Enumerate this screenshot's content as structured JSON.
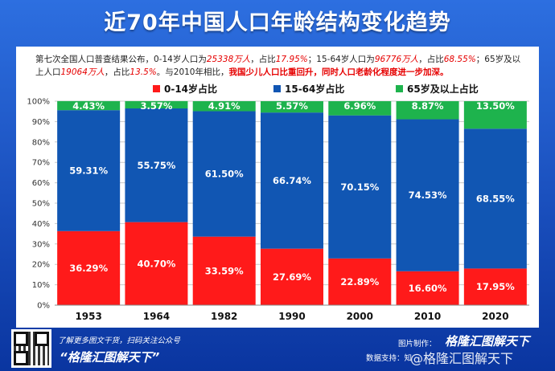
{
  "title": "近70年中国人口年龄结构变化趋势",
  "description": {
    "p1": "第七次全国人口普查结果公布，0-14岁人口为",
    "v1": "25338万人",
    "p2": "，占比",
    "v2": "17.95%",
    "p3": "；15-64岁人口为",
    "v3": "96776万人",
    "p4": "，占比",
    "v4": "68.55%",
    "p5": "；65岁及以上人口",
    "v5": "19064万人",
    "p6": "，占比",
    "v6": "13.5%",
    "p7": "。与2010年相比，",
    "v7": "我国少儿人口比重回升，同时人口老龄化程度进一步加深。"
  },
  "colors": {
    "young": "#ff1a1a",
    "working": "#1156b3",
    "elderly": "#1eb34d",
    "grid": "#c8c8c8"
  },
  "chart_data": {
    "type": "bar",
    "stacked": true,
    "categories": [
      "1953",
      "1964",
      "1982",
      "1990",
      "2000",
      "2010",
      "2020"
    ],
    "series": [
      {
        "name": "0-14岁占比",
        "values": [
          36.29,
          40.7,
          33.59,
          27.69,
          22.89,
          16.6,
          17.95
        ],
        "labels": [
          "36.29%",
          "40.70%",
          "33.59%",
          "27.69%",
          "22.89%",
          "16.60%",
          "17.95%"
        ]
      },
      {
        "name": "15-64岁占比",
        "values": [
          59.31,
          55.75,
          61.5,
          66.74,
          70.15,
          74.53,
          68.55
        ],
        "labels": [
          "59.31%",
          "55.75%",
          "61.50%",
          "66.74%",
          "70.15%",
          "74.53%",
          "68.55%"
        ]
      },
      {
        "name": "65岁及以上占比",
        "values": [
          4.43,
          3.57,
          4.91,
          5.57,
          6.96,
          8.87,
          13.5
        ],
        "labels": [
          "4.43%",
          "3.57%",
          "4.91%",
          "5.57%",
          "6.96%",
          "8.87%",
          "13.50%"
        ]
      }
    ],
    "yticks": [
      "0%",
      "10%",
      "20%",
      "30%",
      "40%",
      "50%",
      "60%",
      "70%",
      "80%",
      "90%",
      "100%"
    ],
    "ylim": [
      0,
      100
    ],
    "legend": "top",
    "grid": true
  },
  "footer": {
    "line1": "了解更多图文干货，扫码关注公众号",
    "slogan": "“格隆汇图解天下”",
    "made_by": "图片制作：",
    "brand": "格隆汇图解天下",
    "data_support": "数据支持：知",
    "watermark": "@格隆汇图解天下"
  }
}
